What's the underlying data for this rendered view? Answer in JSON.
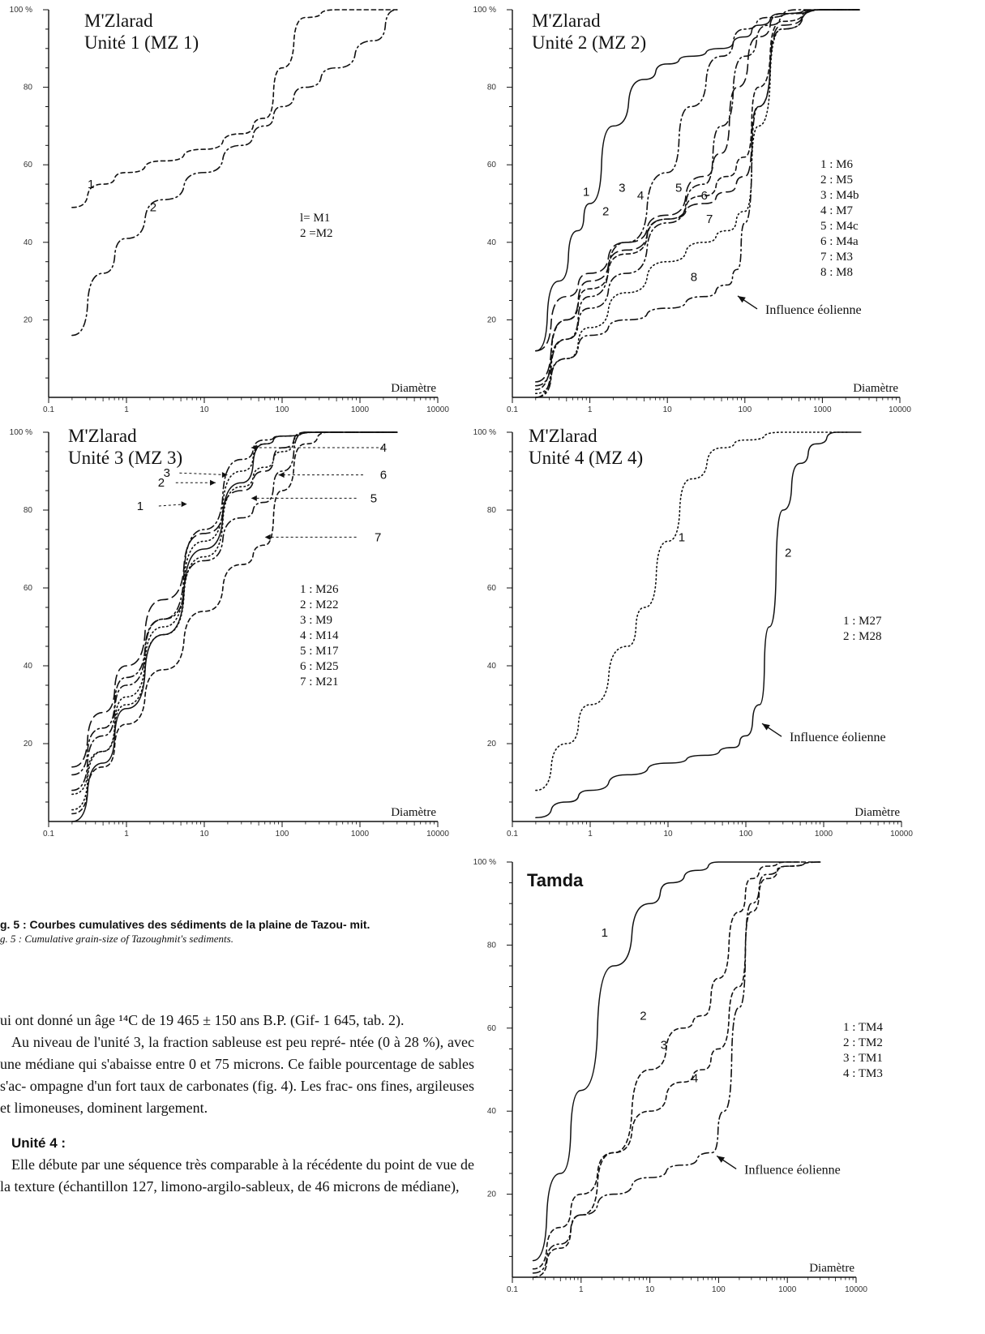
{
  "figure": {
    "caption_fr": "g. 5 : Courbes cumulatives des sédiments de la plaine de Tazou- mit.",
    "caption_en": "g. 5 : Cumulative grain-size of Tazoughmit's sediments."
  },
  "body": {
    "p1": "ui ont donné un âge ¹⁴C de 19 465 ± 150 ans B.P. (Gif- 1 645, tab. 2).",
    "p2": "Au niveau de l'unité 3, la fraction sableuse est peu repré- ntée (0 à 28 %), avec une médiane qui s'abaisse entre 0 et 75 microns. Ce faible pourcentage de sables s'ac- ompagne d'un fort taux de carbonates (fig. 4). Les frac- ons fines, argileuses et limoneuses, dominent largement.",
    "heading": "Unité 4 :",
    "p3": "Elle débute par une séquence très comparable à la récédente du point de vue de la texture (échantillon 127, limono-argilo-sableux, de 46 microns de médiane),"
  },
  "chart_data": [
    {
      "type": "line",
      "title": "M'Zlarad\nUnité 1 (MZ 1)",
      "xlabel": "Diamètre",
      "ylabel": "",
      "xscale": "log",
      "xlim": [
        0.1,
        10000
      ],
      "ylim": [
        0,
        100
      ],
      "xticks": [
        "0.1",
        "1",
        "10",
        "100",
        "1000",
        "10000"
      ],
      "yticks": [
        "20",
        "40",
        "60",
        "80",
        "100 %"
      ],
      "legend": [
        "l= M1",
        "2 =M2"
      ],
      "legend_position": "center",
      "series": [
        {
          "label": "1",
          "style": "dash",
          "x": [
            0.2,
            0.5,
            1,
            3,
            10,
            30,
            60,
            100,
            200,
            500,
            1500,
            3000
          ],
          "y": [
            49,
            55,
            58,
            61,
            64,
            68,
            72,
            85,
            98,
            100,
            100,
            100
          ]
        },
        {
          "label": "2",
          "style": "dashdot",
          "x": [
            0.2,
            0.5,
            1,
            3,
            10,
            30,
            60,
            100,
            200,
            500,
            1500,
            3000
          ],
          "y": [
            16,
            32,
            41,
            51,
            58,
            65,
            70,
            75,
            80,
            85,
            92,
            100
          ]
        }
      ],
      "annotations": []
    },
    {
      "type": "line",
      "title": "M'Zlarad\nUnité 2 (MZ 2)",
      "xlabel": "Diamètre",
      "ylabel": "",
      "xscale": "log",
      "xlim": [
        0.1,
        10000
      ],
      "ylim": [
        0,
        100
      ],
      "xticks": [
        "0.1",
        "1",
        "10",
        "100",
        "1000",
        "10000"
      ],
      "yticks": [
        "20",
        "40",
        "60",
        "80",
        "100 %"
      ],
      "legend": [
        "1 : M6",
        "2 : M5",
        "3 : M4b",
        "4 : M7",
        "5 : M4c",
        "6 : M4a",
        "7 : M3",
        "8 : M8"
      ],
      "legend_position": "right",
      "series": [
        {
          "label": "1",
          "style": "solid",
          "x": [
            0.2,
            0.4,
            0.7,
            1,
            2,
            5,
            10,
            20,
            50,
            100,
            150,
            300,
            1000,
            3000
          ],
          "y": [
            12,
            30,
            43,
            50,
            70,
            82,
            86,
            88,
            90,
            93,
            96,
            99,
            100,
            100
          ]
        },
        {
          "label": "2",
          "style": "dashdot",
          "x": [
            0.2,
            0.5,
            1,
            3,
            10,
            20,
            50,
            100,
            200,
            500,
            1000,
            3000
          ],
          "y": [
            3,
            15,
            26,
            40,
            58,
            75,
            88,
            95,
            98,
            100,
            100,
            100
          ]
        },
        {
          "label": "3",
          "style": "dashdot",
          "x": [
            0.2,
            0.5,
            1,
            3,
            10,
            30,
            50,
            100,
            200,
            400,
            1000,
            3000
          ],
          "y": [
            0,
            15,
            23,
            32,
            45,
            55,
            70,
            88,
            96,
            99,
            100,
            100
          ]
        },
        {
          "label": "4",
          "style": "longdash",
          "x": [
            0.2,
            0.5,
            1,
            3,
            10,
            30,
            50,
            80,
            150,
            300,
            1000,
            3000
          ],
          "y": [
            12,
            26,
            32,
            40,
            47,
            57,
            63,
            80,
            93,
            99,
            100,
            100
          ]
        },
        {
          "label": "5",
          "style": "dash",
          "x": [
            0.2,
            0.5,
            1,
            3,
            10,
            30,
            60,
            100,
            150,
            300,
            1000,
            3000
          ],
          "y": [
            2,
            20,
            28,
            37,
            46,
            52,
            57,
            62,
            80,
            97,
            100,
            100
          ]
        },
        {
          "label": "6",
          "style": "longdash",
          "x": [
            0.2,
            0.5,
            1,
            3,
            10,
            30,
            60,
            100,
            150,
            300,
            1000,
            3000
          ],
          "y": [
            4,
            20,
            30,
            38,
            46,
            50,
            53,
            57,
            75,
            96,
            100,
            100
          ]
        },
        {
          "label": "7",
          "style": "dot",
          "x": [
            0.2,
            0.5,
            1,
            3,
            10,
            30,
            60,
            100,
            150,
            300,
            1000,
            3000
          ],
          "y": [
            1,
            10,
            18,
            27,
            35,
            40,
            43,
            48,
            70,
            95,
            100,
            100
          ]
        },
        {
          "label": "8",
          "style": "dashdot",
          "x": [
            0.2,
            0.5,
            1,
            3,
            10,
            30,
            60,
            80,
            100,
            150,
            300,
            1000,
            3000
          ],
          "y": [
            0,
            10,
            16,
            20,
            23,
            26,
            29,
            33,
            45,
            75,
            95,
            100,
            100
          ]
        }
      ],
      "annotations": [
        {
          "text": "Influence éolienne",
          "x": 70,
          "y": 27
        }
      ]
    },
    {
      "type": "line",
      "title": "M'Zlarad\nUnité 3 (MZ 3)",
      "xlabel": "Diamètre",
      "ylabel": "",
      "xscale": "log",
      "xlim": [
        0.1,
        10000
      ],
      "ylim": [
        0,
        100
      ],
      "xticks": [
        "0.1",
        "1",
        "10",
        "100",
        "1000",
        "10000"
      ],
      "yticks": [
        "20",
        "40",
        "60",
        "80",
        "100 %"
      ],
      "legend": [
        "1 : M26",
        "2 : M22",
        "3 : M9",
        "4 : M14",
        "5 : M17",
        "6 : M25",
        "7 : M21"
      ],
      "legend_position": "right",
      "series": [
        {
          "label": "1",
          "style": "dashdot",
          "x": [
            0.2,
            0.5,
            1,
            3,
            10,
            30,
            60,
            100,
            300,
            3000
          ],
          "y": [
            8,
            22,
            35,
            52,
            75,
            93,
            98,
            99,
            100,
            100
          ]
        },
        {
          "label": "2",
          "style": "dot",
          "x": [
            0.2,
            0.5,
            1,
            3,
            10,
            30,
            60,
            100,
            300,
            3000
          ],
          "y": [
            3,
            18,
            32,
            50,
            72,
            90,
            97,
            99,
            100,
            100
          ]
        },
        {
          "label": "3",
          "style": "solid",
          "x": [
            0.2,
            0.5,
            1,
            3,
            10,
            30,
            60,
            100,
            300,
            3000
          ],
          "y": [
            0,
            15,
            29,
            48,
            70,
            87,
            97,
            99,
            100,
            100
          ]
        },
        {
          "label": "4",
          "style": "dot",
          "x": [
            0.2,
            0.5,
            1,
            3,
            10,
            30,
            60,
            100,
            200,
            3000
          ],
          "y": [
            7,
            18,
            30,
            48,
            68,
            86,
            91,
            95,
            100,
            100
          ]
        },
        {
          "label": "5",
          "style": "dashdot",
          "x": [
            0.2,
            0.5,
            1,
            3,
            10,
            30,
            60,
            100,
            200,
            3000
          ],
          "y": [
            12,
            24,
            37,
            52,
            67,
            78,
            82,
            90,
            100,
            100
          ]
        },
        {
          "label": "6",
          "style": "longdash",
          "x": [
            0.2,
            0.5,
            1,
            3,
            10,
            30,
            60,
            100,
            200,
            3000
          ],
          "y": [
            14,
            28,
            40,
            57,
            74,
            85,
            90,
            96,
            100,
            100
          ]
        },
        {
          "label": "7",
          "style": "dash",
          "x": [
            0.2,
            0.5,
            1,
            3,
            10,
            30,
            60,
            100,
            200,
            400,
            3000
          ],
          "y": [
            2,
            14,
            25,
            39,
            54,
            66,
            71,
            85,
            97,
            100,
            100
          ]
        }
      ],
      "annotations": []
    },
    {
      "type": "line",
      "title": "M'Zlarad\nUnité 4 (MZ 4)",
      "xlabel": "Diamètre",
      "ylabel": "",
      "xscale": "log",
      "xlim": [
        0.1,
        10000
      ],
      "ylim": [
        0,
        100
      ],
      "xticks": [
        "0.1",
        "1",
        "10",
        "100",
        "1000",
        "10000"
      ],
      "yticks": [
        "20",
        "40",
        "60",
        "80",
        "100 %"
      ],
      "legend": [
        "1 : M27",
        "2 : M28"
      ],
      "legend_position": "right",
      "series": [
        {
          "label": "1",
          "style": "dot",
          "x": [
            0.2,
            0.5,
            1,
            3,
            5,
            10,
            20,
            50,
            100,
            300,
            1000,
            2000
          ],
          "y": [
            8,
            20,
            30,
            45,
            55,
            72,
            88,
            96,
            98,
            100,
            100,
            100
          ]
        },
        {
          "label": "2",
          "style": "solid",
          "x": [
            0.2,
            0.5,
            1,
            3,
            10,
            30,
            70,
            100,
            150,
            200,
            300,
            500,
            800,
            1500,
            3000
          ],
          "y": [
            1,
            5,
            8,
            12,
            15,
            17,
            19,
            22,
            30,
            50,
            80,
            92,
            97,
            100,
            100
          ]
        }
      ],
      "annotations": [
        {
          "text": "Influence éolienne",
          "x": 140,
          "y": 26
        }
      ]
    },
    {
      "type": "line",
      "title": "Tamda",
      "xlabel": "Diamètre",
      "ylabel": "",
      "xscale": "log",
      "xlim": [
        0.1,
        10000
      ],
      "ylim": [
        0,
        100
      ],
      "xticks": [
        "0.1",
        "1",
        "10",
        "100",
        "1000",
        "10000"
      ],
      "yticks": [
        "20",
        "40",
        "60",
        "80",
        "100 %"
      ],
      "legend": [
        "1 : TM4",
        "2 : TM2",
        "3 : TM1",
        "4 : TM3"
      ],
      "legend_position": "right",
      "series": [
        {
          "label": "1",
          "style": "solid",
          "x": [
            0.2,
            0.5,
            1,
            3,
            10,
            20,
            50,
            100,
            200,
            500,
            1500
          ],
          "y": [
            4,
            25,
            45,
            75,
            90,
            95,
            98,
            100,
            100,
            100,
            100
          ]
        },
        {
          "label": "2",
          "style": "dash",
          "x": [
            0.2,
            0.5,
            1,
            3,
            10,
            30,
            60,
            100,
            200,
            300,
            500,
            1000,
            3000
          ],
          "y": [
            0,
            7,
            15,
            30,
            50,
            60,
            63,
            72,
            88,
            96,
            99,
            100,
            100
          ]
        },
        {
          "label": "3",
          "style": "dash",
          "x": [
            0.2,
            0.5,
            1,
            3,
            10,
            30,
            60,
            100,
            200,
            300,
            500,
            1000,
            3000
          ],
          "y": [
            2,
            12,
            20,
            30,
            40,
            47,
            50,
            55,
            70,
            88,
            96,
            99,
            100
          ]
        },
        {
          "label": "4",
          "style": "dashdot",
          "x": [
            0.2,
            0.5,
            1,
            3,
            10,
            30,
            80,
            120,
            200,
            300,
            500,
            1000,
            3000
          ],
          "y": [
            1,
            8,
            15,
            20,
            24,
            27,
            30,
            40,
            65,
            90,
            97,
            99,
            100
          ]
        }
      ],
      "annotations": [
        {
          "text": "Influence éolienne",
          "x": 80,
          "y": 30
        }
      ]
    }
  ]
}
